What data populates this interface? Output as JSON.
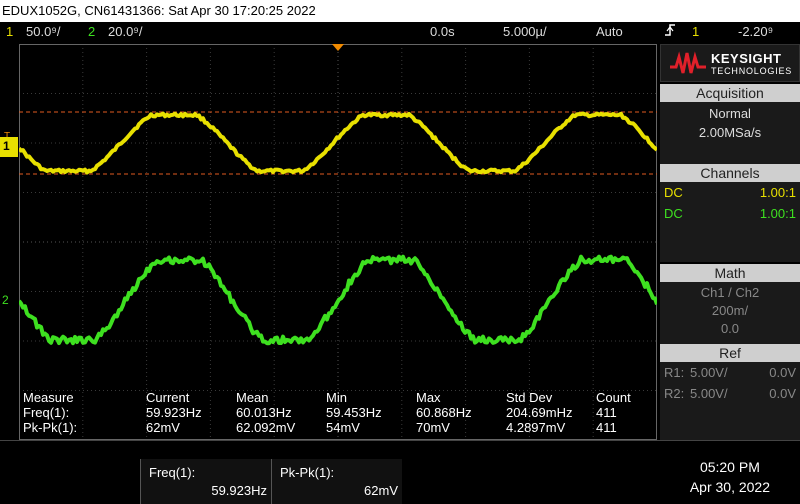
{
  "title": "EDUX1052G, CN61431366: Sat Apr 30 17:20:25 2022",
  "status": {
    "ch1_num": "1",
    "ch1_scale": "50.0⁹/",
    "ch2_num": "2",
    "ch2_scale": "20.0⁹/",
    "time_pos": "0.0s",
    "time_scale": "5.000µ/",
    "trigger_mode": "Auto",
    "trigger_icon": "trigger-edge-icon",
    "trigger_channel": "1",
    "trigger_level": "-2.20⁹"
  },
  "sidebar": {
    "brand_line1": "KEYSIGHT",
    "brand_line2": "TECHNOLOGIES",
    "acquisition_title": "Acquisition",
    "acq_mode": "Normal",
    "acq_rate": "2.00MSa/s",
    "channels_title": "Channels",
    "channels": [
      {
        "coupling": "DC",
        "probe": "1.00:1",
        "color": "#e8e000"
      },
      {
        "coupling": "DC",
        "probe": "1.00:1",
        "color": "#3ee020"
      }
    ],
    "math_title": "Math",
    "math_func": "Ch1 / Ch2",
    "math_scale": "200m/",
    "math_offset": "0.0",
    "ref_title": "Ref",
    "refs": [
      {
        "name": "R1:",
        "scale": "5.00V/",
        "offset": "0.0V"
      },
      {
        "name": "R2:",
        "scale": "5.00V/",
        "offset": "0.0V"
      }
    ]
  },
  "measure": {
    "headers": [
      "Measure",
      "Current",
      "Mean",
      "Min",
      "Max",
      "Std Dev",
      "Count"
    ],
    "rows": [
      [
        "Freq(1):",
        "59.923Hz",
        "60.013Hz",
        "59.453Hz",
        "60.868Hz",
        "204.69mHz",
        "411"
      ],
      [
        "Pk-Pk(1):",
        "62mV",
        "62.092mV",
        "54mV",
        "70mV",
        "4.2897mV",
        "411"
      ]
    ]
  },
  "quick": [
    {
      "label": "Freq(1):",
      "value": "59.923Hz"
    },
    {
      "label": "Pk-Pk(1):",
      "value": "62mV"
    }
  ],
  "clock": {
    "time": "05:20 PM",
    "date": "Apr 30, 2022"
  },
  "markers": {
    "ch1": "1",
    "ch2": "2",
    "trig": "T"
  },
  "colors": {
    "ch1": "#e8e000",
    "ch2": "#3ee020",
    "cursor": "#e05a20",
    "trigger": "#f08a00"
  },
  "chart_data": {
    "type": "line",
    "series": [
      {
        "name": "1",
        "waveform": "sine",
        "frequency_hz": 59.923,
        "pk_pk_mv": 62
      },
      {
        "name": "2",
        "waveform": "sine"
      }
    ],
    "grid": true
  }
}
